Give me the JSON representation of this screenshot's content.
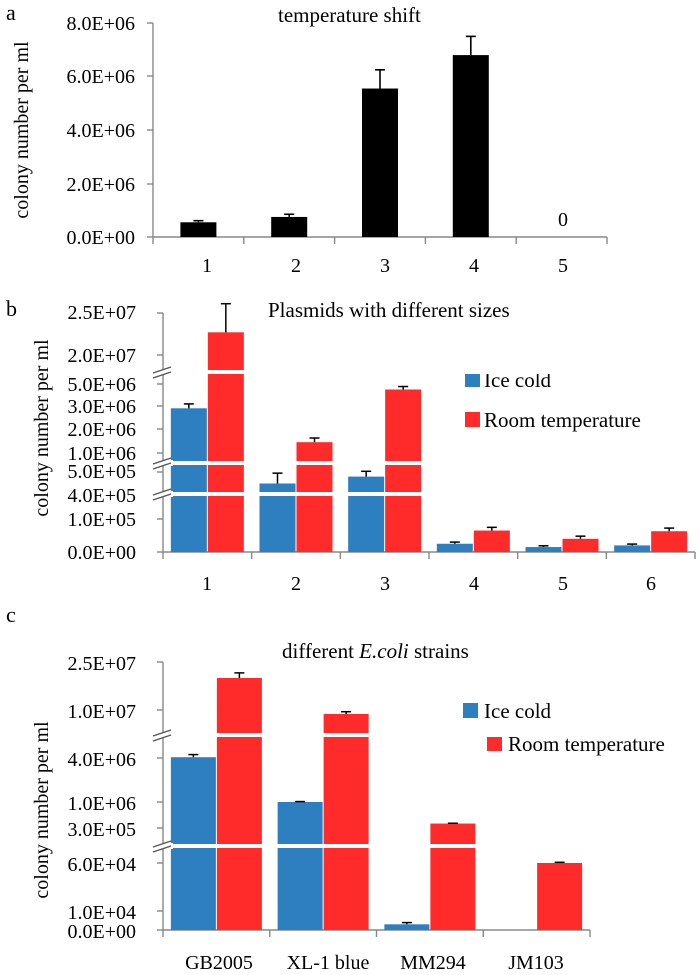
{
  "colors": {
    "black": "#000000",
    "ice_cold": "#2e7fbf",
    "room_temperature": "#ff2a2a",
    "axis": "#888888"
  },
  "chart_data": [
    {
      "panel": "a",
      "type": "bar",
      "title": "temperature shift",
      "ylabel": "colony number per ml",
      "categories": [
        "1",
        "2",
        "3",
        "4",
        "5"
      ],
      "ytick_labels": [
        "0.0E+00",
        "2.0E+06",
        "4.0E+06",
        "6.0E+06",
        "8.0E+06"
      ],
      "ylim": [
        0,
        8000000
      ],
      "series": [
        {
          "values": [
            550000,
            750000,
            5550000,
            6800000,
            0
          ],
          "errors": [
            60000,
            100000,
            700000,
            700000,
            0
          ]
        }
      ],
      "annotations": [
        {
          "category": "5",
          "text": "0"
        }
      ]
    },
    {
      "panel": "b",
      "type": "bar",
      "title": "Plasmids with different sizes",
      "ylabel": "colony number per ml",
      "categories": [
        "1",
        "2",
        "3",
        "4",
        "5",
        "6"
      ],
      "ytick_labels": [
        "0.0E+00",
        "1.0E+05",
        "4.0E+05",
        "5.0E+05",
        "1.0E+06",
        "2.0E+06",
        "3.0E+06",
        "5.0E+06",
        "2.0E+07",
        "2.5E+07"
      ],
      "axis_breaks": true,
      "legend": "right",
      "series": [
        {
          "name": "Ice cold",
          "values": [
            2900000,
            450000,
            480000,
            25000,
            15000,
            20000
          ]
        },
        {
          "name": "Room temperature",
          "values": [
            22700000,
            1450000,
            4500000,
            65000,
            40000,
            63000
          ]
        }
      ]
    },
    {
      "panel": "c",
      "type": "bar",
      "title_prefix": "different ",
      "title_italic": "E.coli",
      "title_suffix": " strains",
      "ylabel": "colony number per ml",
      "categories": [
        "GB2005",
        "XL-1 blue",
        "MM294",
        "JM103"
      ],
      "ytick_labels": [
        "0.0E+00",
        "1.0E+04",
        "6.0E+04",
        "3.0E+05",
        "1.0E+06",
        "4.0E+06",
        "1.0E+07",
        "2.5E+07"
      ],
      "axis_breaks": true,
      "legend": "right",
      "series": [
        {
          "name": "Ice cold",
          "values": [
            4100000,
            1000000,
            3000,
            0
          ]
        },
        {
          "name": "Room temperature",
          "values": [
            20000000,
            9500000,
            420000,
            60000
          ]
        }
      ]
    }
  ]
}
